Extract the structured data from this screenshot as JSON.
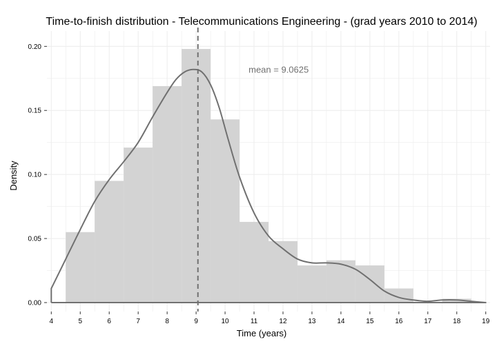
{
  "chart_data": {
    "type": "histogram",
    "title": "Time-to-finish distribution - Telecommunications Engineering - (grad years 2010 to 2014)",
    "xlabel": "Time (years)",
    "ylabel": "Density",
    "xlim": [
      3.85,
      19.15
    ],
    "ylim": [
      -0.007,
      0.212
    ],
    "grid": true,
    "x_ticks": [
      4,
      5,
      6,
      7,
      8,
      9,
      10,
      11,
      12,
      13,
      14,
      15,
      16,
      17,
      18,
      19
    ],
    "y_ticks": [
      0.0,
      0.05,
      0.1,
      0.15,
      0.2
    ],
    "y_tick_labels": [
      "0.00",
      "0.05",
      "0.10",
      "0.15",
      "0.20"
    ],
    "bins": [
      {
        "x0": 4.5,
        "x1": 5.5,
        "density": 0.055
      },
      {
        "x0": 5.5,
        "x1": 6.5,
        "density": 0.095
      },
      {
        "x0": 6.5,
        "x1": 7.5,
        "density": 0.121
      },
      {
        "x0": 7.5,
        "x1": 8.5,
        "density": 0.169
      },
      {
        "x0": 8.5,
        "x1": 9.5,
        "density": 0.198
      },
      {
        "x0": 9.5,
        "x1": 10.5,
        "density": 0.143
      },
      {
        "x0": 10.5,
        "x1": 11.5,
        "density": 0.063
      },
      {
        "x0": 11.5,
        "x1": 12.5,
        "density": 0.048
      },
      {
        "x0": 12.5,
        "x1": 13.5,
        "density": 0.029
      },
      {
        "x0": 13.5,
        "x1": 14.5,
        "density": 0.033
      },
      {
        "x0": 14.5,
        "x1": 15.5,
        "density": 0.029
      },
      {
        "x0": 15.5,
        "x1": 16.5,
        "density": 0.011
      },
      {
        "x0": 16.5,
        "x1": 17.5,
        "density": 0.0
      },
      {
        "x0": 17.5,
        "x1": 18.5,
        "density": 0.003
      }
    ],
    "density_curve": {
      "x": [
        4.0,
        4.5,
        5.0,
        5.5,
        6.0,
        6.5,
        7.0,
        7.5,
        8.0,
        8.3,
        8.6,
        8.9,
        9.2,
        9.5,
        9.8,
        10.1,
        10.5,
        11.0,
        11.5,
        12.0,
        12.5,
        13.0,
        13.5,
        14.0,
        14.5,
        15.0,
        15.5,
        16.0,
        16.5,
        17.0,
        17.5,
        18.0,
        18.5,
        19.0
      ],
      "y": [
        0.011,
        0.034,
        0.057,
        0.079,
        0.096,
        0.11,
        0.125,
        0.145,
        0.164,
        0.174,
        0.18,
        0.182,
        0.18,
        0.17,
        0.152,
        0.128,
        0.098,
        0.07,
        0.052,
        0.042,
        0.034,
        0.031,
        0.031,
        0.03,
        0.026,
        0.018,
        0.009,
        0.004,
        0.002,
        0.001,
        0.002,
        0.002,
        0.001,
        0.0
      ]
    },
    "mean": 9.0625,
    "mean_label": "mean =  9.0625",
    "colors": {
      "bar": "#d3d3d3",
      "curve": "#707070",
      "mean_line": "#707070",
      "grid": "#ececec",
      "background": "#ffffff"
    }
  }
}
